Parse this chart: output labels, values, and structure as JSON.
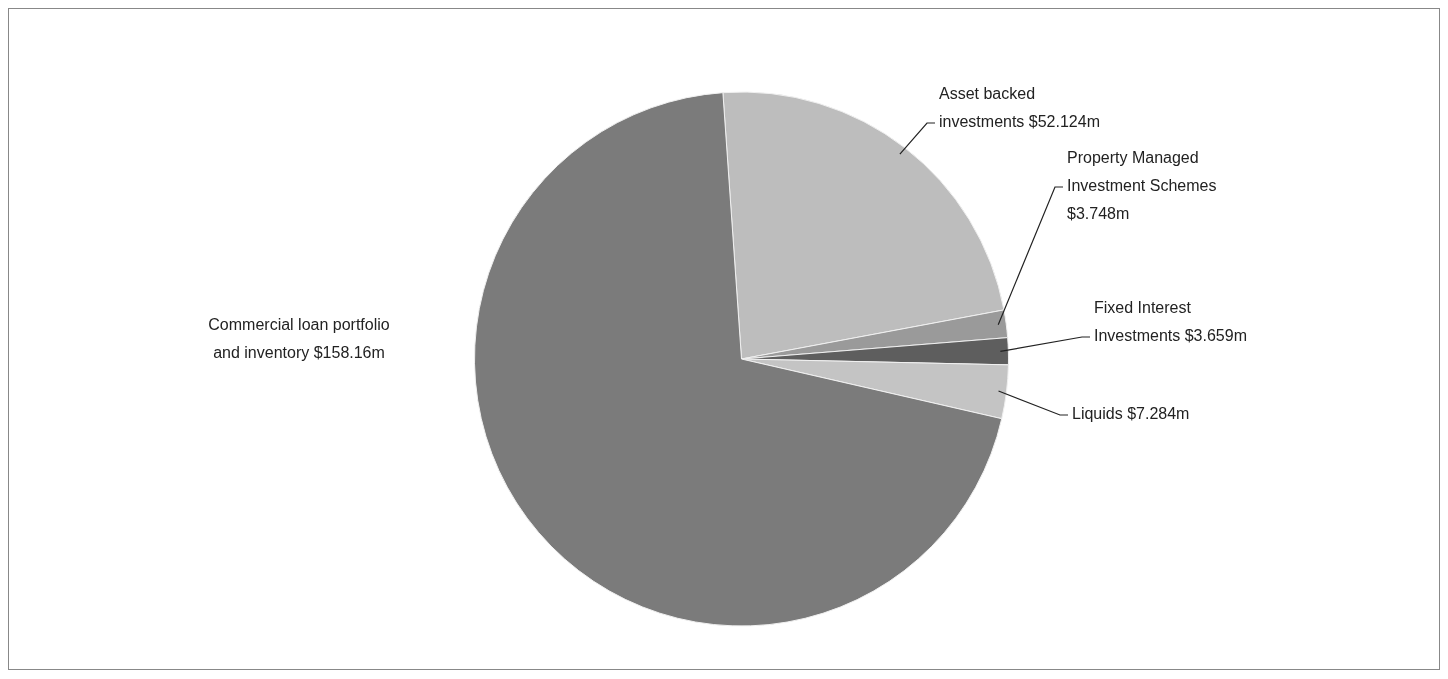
{
  "chart_data": {
    "type": "pie",
    "categories": [
      "Asset backed investments",
      "Property Managed Investment Schemes",
      "Fixed Interest Investments",
      "Liquids",
      "Commercial loan portfolio and inventory"
    ],
    "values": [
      52.124,
      3.748,
      3.659,
      7.284,
      158.16
    ],
    "value_labels": [
      "$52.124m",
      "$3.748m",
      "$3.659m",
      "$7.284m",
      "$158.16m"
    ],
    "colors": [
      "#bdbdbd",
      "#9a9a9a",
      "#5e5e5e",
      "#c4c4c4",
      "#7b7b7b"
    ],
    "legend": false
  }
}
